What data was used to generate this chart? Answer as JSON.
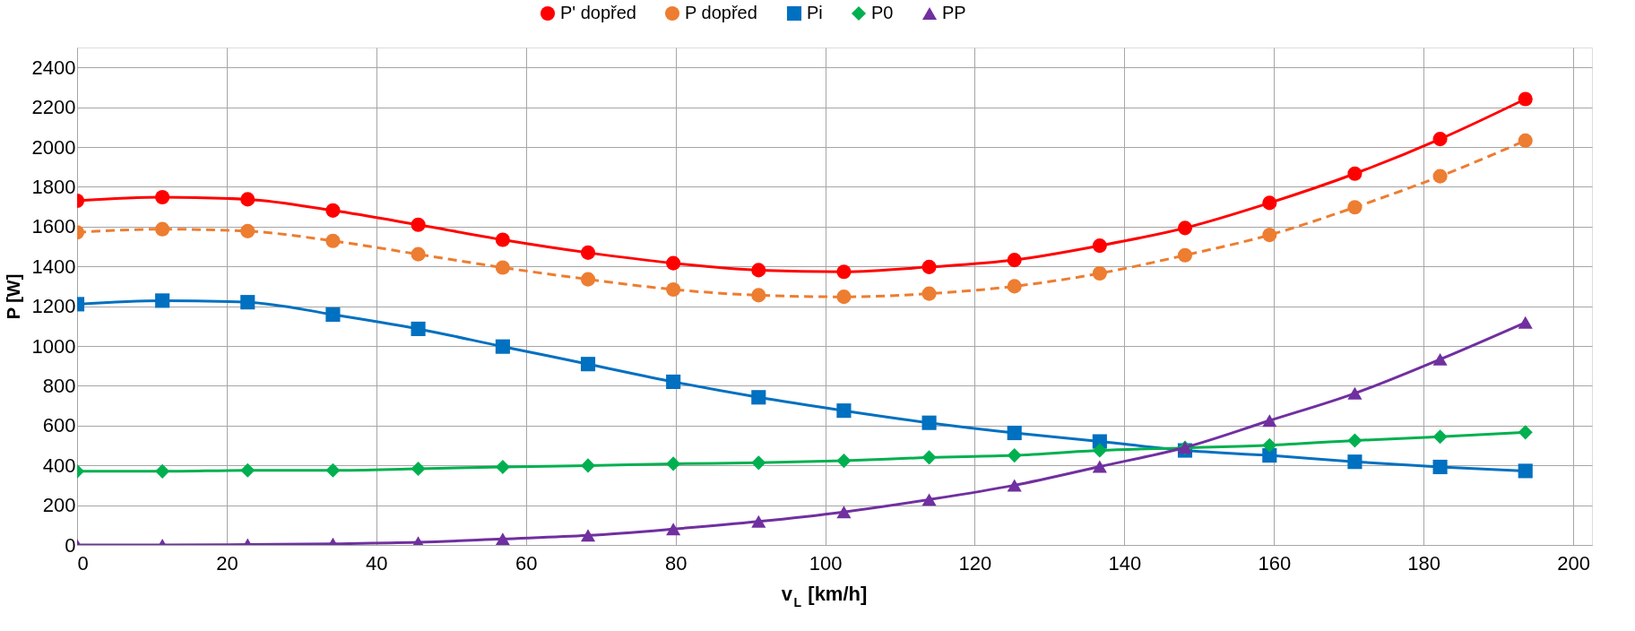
{
  "chart_data": {
    "type": "line",
    "xlabel": "v$_{L}$ [km/h]",
    "ylabel": "P [W]",
    "x": [
      0,
      11.4,
      22.8,
      34.2,
      45.6,
      56.9,
      68.3,
      79.7,
      91.1,
      102.5,
      113.9,
      125.3,
      136.7,
      148.1,
      159.4,
      170.8,
      182.2,
      193.6
    ],
    "series": [
      {
        "name": "P' dopřed",
        "color": "#ff0000",
        "marker": "circle",
        "line_style": "solid",
        "values": [
          1730,
          1748,
          1737,
          1681,
          1609,
          1534,
          1469,
          1416,
          1381,
          1373,
          1397,
          1432,
          1504,
          1593,
          1719,
          1866,
          2040,
          2241
        ]
      },
      {
        "name": "P dopřed",
        "color": "#ed7d31",
        "marker": "circle",
        "line_style": "dashed",
        "values": [
          1571,
          1587,
          1577,
          1528,
          1461,
          1394,
          1335,
          1284,
          1255,
          1247,
          1263,
          1300,
          1365,
          1456,
          1558,
          1697,
          1853,
          2032
        ]
      },
      {
        "name": "Pi",
        "color": "#0070c0",
        "marker": "square",
        "line_style": "solid",
        "values": [
          1210,
          1228,
          1220,
          1158,
          1086,
          997,
          909,
          820,
          742,
          675,
          614,
          563,
          520,
          475,
          450,
          418,
          392,
          372
        ]
      },
      {
        "name": "P0",
        "color": "#00b050",
        "marker": "diamond",
        "line_style": "solid",
        "values": [
          370,
          370,
          375,
          375,
          383,
          392,
          399,
          408,
          413,
          423,
          440,
          450,
          475,
          488,
          501,
          525,
          544,
          566
        ]
      },
      {
        "name": "PP",
        "color": "#7030a0",
        "marker": "triangle",
        "line_style": "solid",
        "values": [
          0,
          0,
          2,
          6,
          13,
          30,
          48,
          80,
          118,
          166,
          228,
          300,
          394,
          490,
          625,
          762,
          933,
          1118
        ]
      }
    ],
    "xlim": [
      0,
      202.5
    ],
    "xticks": [
      0,
      20,
      40,
      60,
      80,
      100,
      120,
      140,
      160,
      180,
      200
    ],
    "ylim": [
      0,
      2500
    ],
    "yticks": [
      0,
      200,
      400,
      600,
      800,
      1000,
      1200,
      1400,
      1600,
      1800,
      2000,
      2200,
      2400
    ],
    "grid": true,
    "legend": "top"
  }
}
